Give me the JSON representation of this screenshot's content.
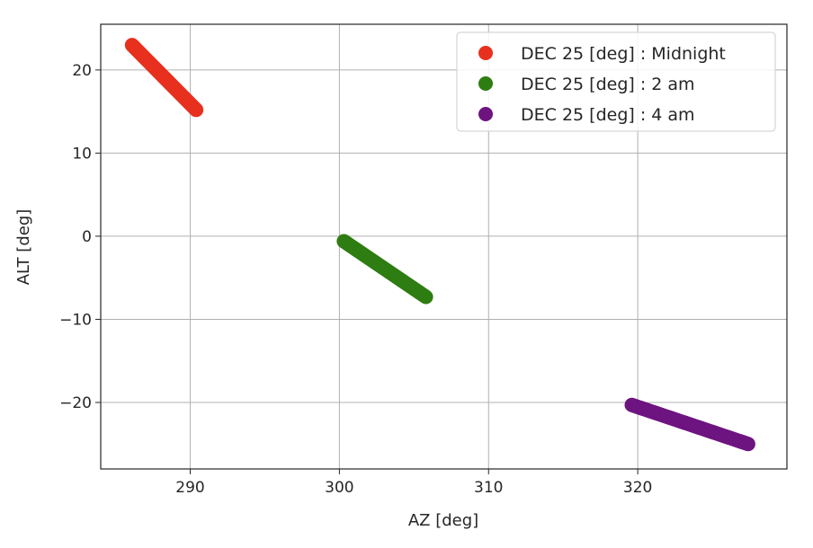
{
  "chart_data": {
    "type": "scatter",
    "xlabel": "AZ [deg]",
    "ylabel": "ALT [deg]",
    "xlim": [
      284,
      330
    ],
    "ylim": [
      -28,
      25.5
    ],
    "x_ticks": [
      290,
      300,
      310,
      320
    ],
    "y_ticks": [
      20,
      10,
      0,
      -10,
      -20
    ],
    "x_tick_labels": [
      "290",
      "300",
      "310",
      "320"
    ],
    "y_tick_labels": [
      "20",
      "10",
      "0",
      "−10",
      "−20"
    ],
    "grid": true,
    "legend_position": "top-right",
    "series": [
      {
        "name": "DEC 25 [deg] : Midnight",
        "color": "#e8301e",
        "x_range": [
          286.1,
          290.4
        ],
        "y_range": [
          23.0,
          15.2
        ]
      },
      {
        "name": "DEC 25 [deg] : 2 am",
        "color": "#2e7d12",
        "x_range": [
          300.3,
          305.8
        ],
        "y_range": [
          -0.6,
          -7.3
        ]
      },
      {
        "name": "DEC 25 [deg] : 4 am",
        "color": "#6e1480",
        "x_range": [
          319.6,
          327.4
        ],
        "y_range": [
          -20.3,
          -25.0
        ]
      }
    ]
  }
}
